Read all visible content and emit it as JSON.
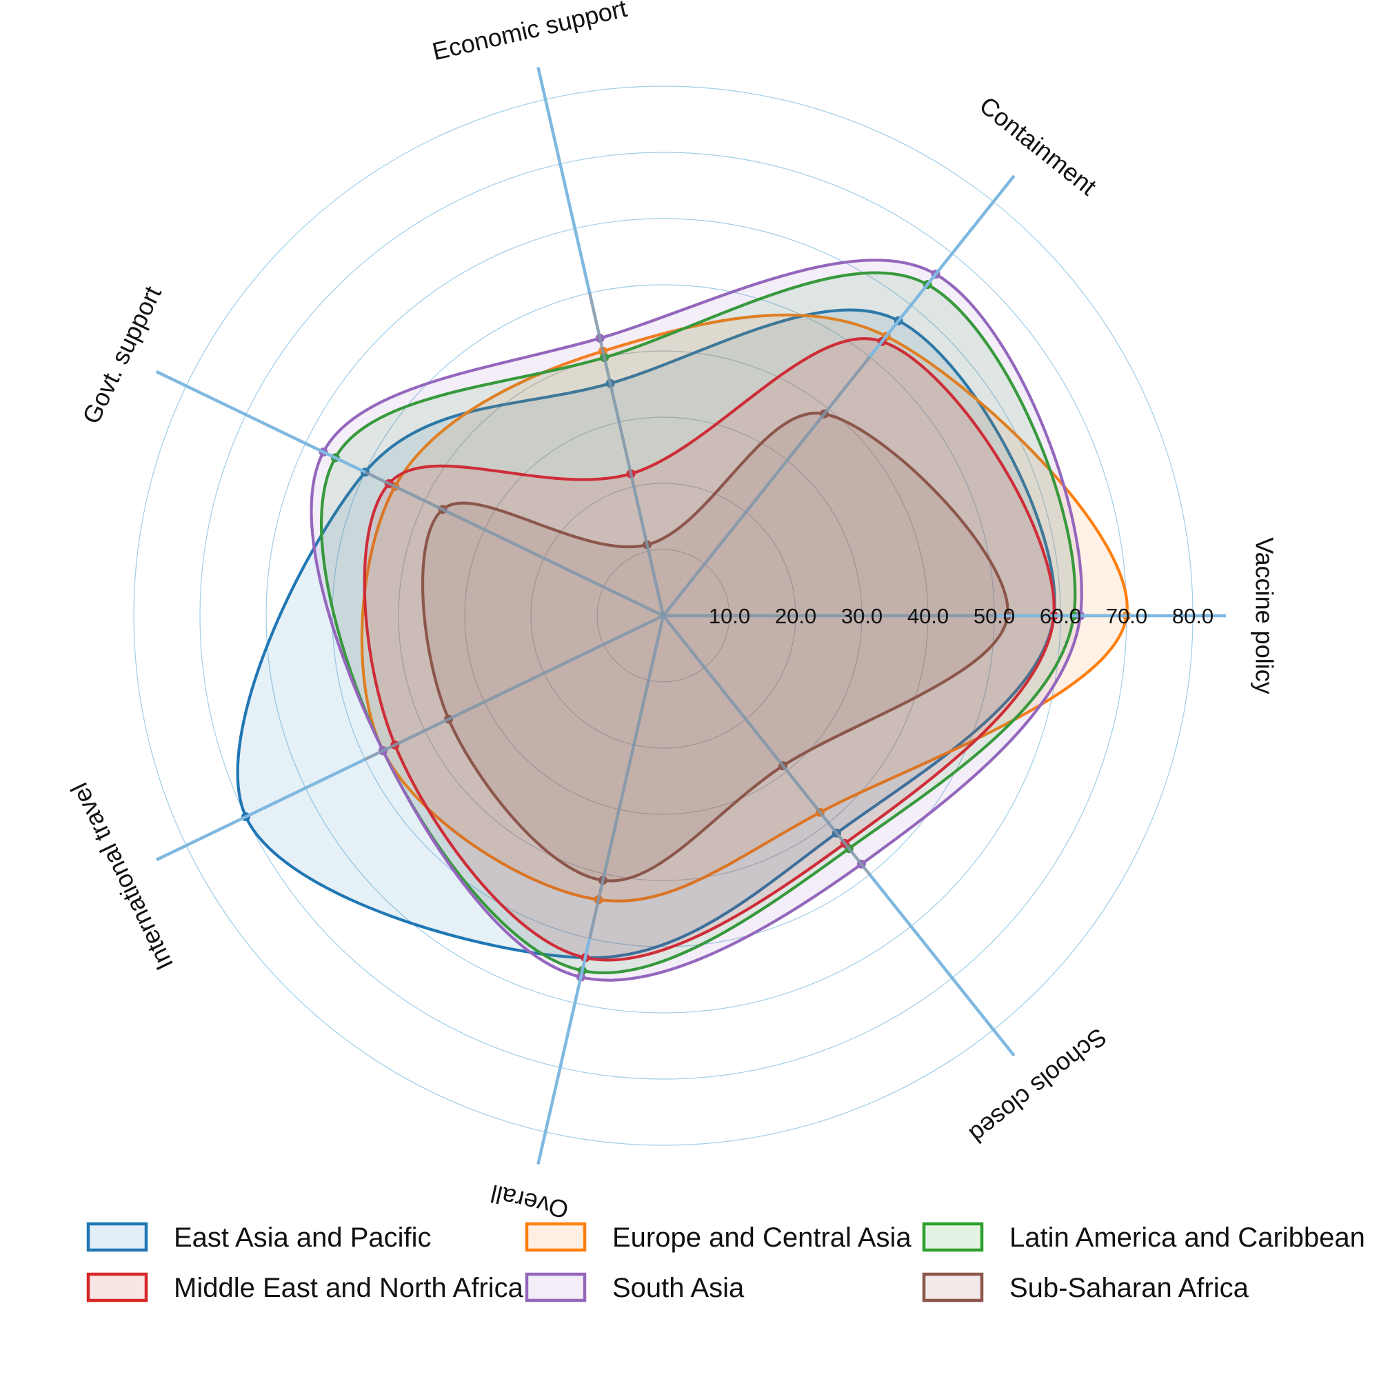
{
  "chart_data": {
    "type": "radar",
    "title": "",
    "axes": [
      "Vaccine policy",
      "Containment",
      "Economic support",
      "Govt. support",
      "International travel",
      "Overall",
      "Schools closed"
    ],
    "radial_ticks": [
      "10.0",
      "20.0",
      "30.0",
      "40.0",
      "50.0",
      "60.0",
      "70.0",
      "80.0"
    ],
    "rlim": [
      0,
      80
    ],
    "grid": true,
    "legend_position": "bottom",
    "series": [
      {
        "name": "East Asia and Pacific",
        "color": "#1f77b4",
        "values": [
          59,
          57,
          36,
          50,
          70,
          53,
          42
        ]
      },
      {
        "name": "Europe and Central Asia",
        "color": "#ff7f0e",
        "values": [
          70,
          54,
          41,
          45,
          47,
          44,
          38
        ]
      },
      {
        "name": "Latin America and Caribbean",
        "color": "#2ca02c",
        "values": [
          62,
          64,
          40,
          55,
          47,
          55,
          45
        ]
      },
      {
        "name": "Middle East and North Africa",
        "color": "#d62728",
        "values": [
          59,
          53,
          22,
          46,
          45,
          53,
          44
        ]
      },
      {
        "name": "South Asia",
        "color": "#9467bd",
        "values": [
          63,
          66,
          43,
          57,
          47,
          56,
          48
        ]
      },
      {
        "name": "Sub-Saharan Africa",
        "color": "#8c564b",
        "values": [
          52,
          39,
          11,
          37,
          36,
          41,
          29
        ]
      }
    ]
  }
}
